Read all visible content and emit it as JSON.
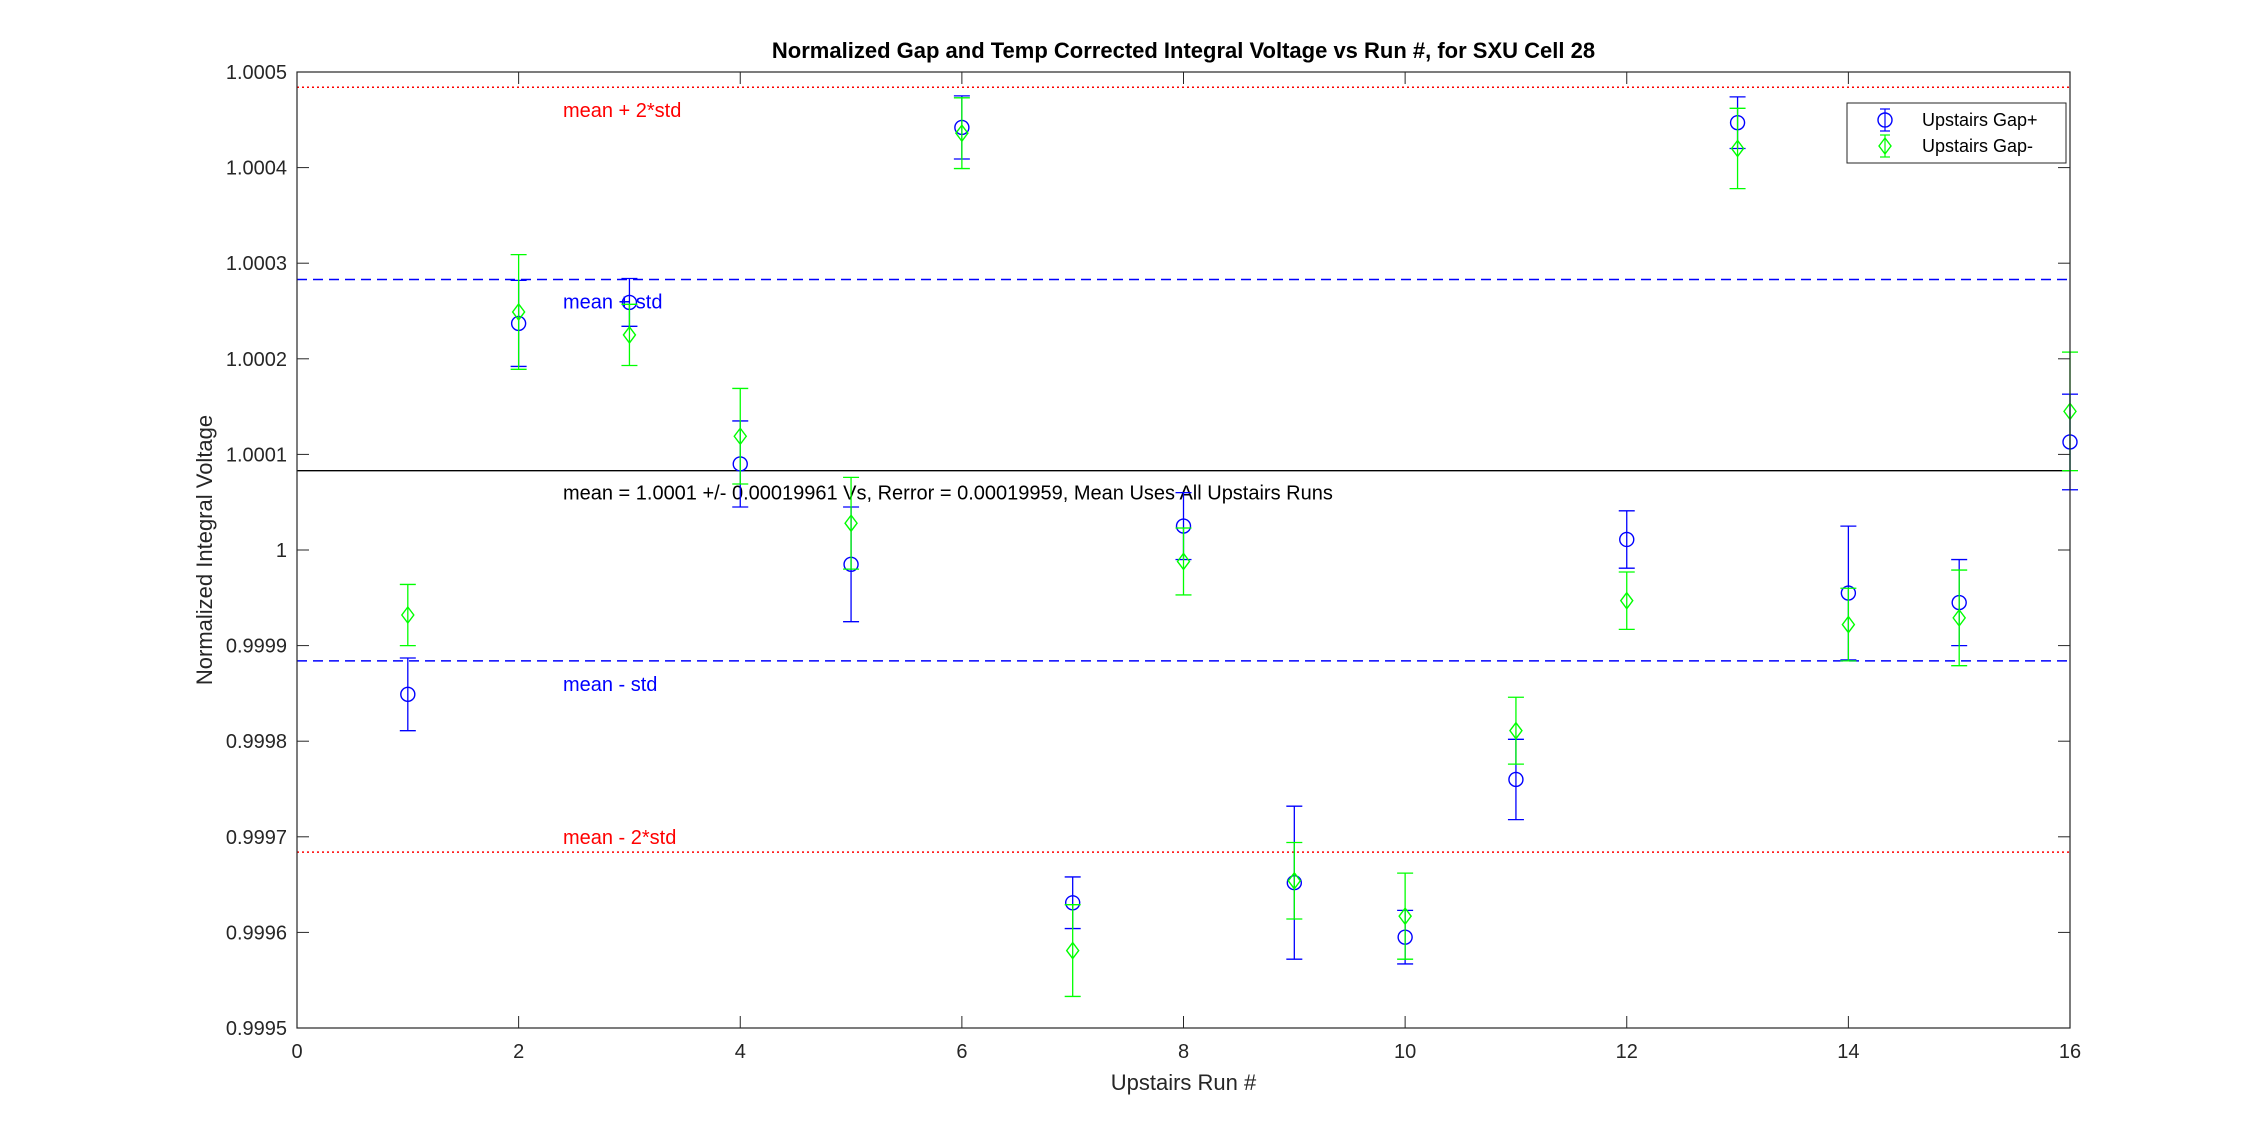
{
  "chart_data": {
    "type": "scatter",
    "title": "Normalized Gap and Temp Corrected Integral Voltage vs Run #, for SXU Cell 28",
    "xlabel": "Upstairs Run #",
    "ylabel": "Normalized Integral Voltage",
    "xlim": [
      0,
      16
    ],
    "ylim": [
      0.9995,
      1.0005
    ],
    "x_ticks": [
      0,
      2,
      4,
      6,
      8,
      10,
      12,
      14,
      16
    ],
    "x_tick_labels": [
      "0",
      "2",
      "4",
      "6",
      "8",
      "10",
      "12",
      "14",
      "16"
    ],
    "y_ticks": [
      0.9995,
      0.9996,
      0.9997,
      0.9998,
      0.9999,
      1.0,
      1.0001,
      1.0002,
      1.0003,
      1.0004,
      1.0005
    ],
    "y_tick_labels": [
      "0.9995",
      "0.9996",
      "0.9997",
      "0.9998",
      "0.9999",
      "1",
      "1.0001",
      "1.0002",
      "1.0003",
      "1.0004",
      "1.0005"
    ],
    "grid": false,
    "legend_position": "top-right",
    "series": [
      {
        "name": "Upstairs Gap+",
        "color": "#0000ff",
        "marker": "circle",
        "x": [
          1,
          2,
          3,
          4,
          5,
          6,
          7,
          8,
          9,
          10,
          11,
          12,
          13,
          14,
          15,
          16
        ],
        "y": [
          0.999849,
          1.000237,
          1.000259,
          1.00009,
          0.999985,
          1.000442,
          0.999631,
          1.000025,
          0.999652,
          0.999595,
          0.99976,
          1.000011,
          1.000447,
          0.999955,
          0.999945,
          1.000113
        ],
        "err": [
          3.8e-05,
          4.5e-05,
          2.5e-05,
          4.5e-05,
          6e-05,
          3.3e-05,
          2.7e-05,
          3.5e-05,
          8e-05,
          2.8e-05,
          4.2e-05,
          3e-05,
          2.7e-05,
          7e-05,
          4.5e-05,
          5e-05
        ]
      },
      {
        "name": "Upstairs Gap-",
        "color": "#00ff00",
        "marker": "diamond",
        "x": [
          1,
          2,
          3,
          4,
          5,
          6,
          7,
          8,
          9,
          10,
          11,
          12,
          13,
          14,
          15,
          16
        ],
        "y": [
          0.999932,
          1.000249,
          1.000225,
          1.000119,
          1.000028,
          1.000436,
          0.999581,
          0.999988,
          0.999654,
          0.999617,
          0.999811,
          0.999947,
          1.00042,
          0.999922,
          0.999929,
          1.000145
        ],
        "err": [
          3.2e-05,
          6e-05,
          3.2e-05,
          5e-05,
          4.8e-05,
          3.7e-05,
          4.8e-05,
          3.5e-05,
          4e-05,
          4.5e-05,
          3.5e-05,
          3e-05,
          4.2e-05,
          3.8e-05,
          5e-05,
          6.2e-05
        ]
      }
    ],
    "reference_lines": [
      {
        "y": 1.000484,
        "style": "dotted",
        "color": "#ff0000",
        "label": "mean + 2*std",
        "label_x": 2.4,
        "label_y": 1.00046,
        "label_color": "#ff0000"
      },
      {
        "y": 1.000283,
        "style": "dashed",
        "color": "#0000ff",
        "label": "mean + std",
        "label_x": 2.4,
        "label_y": 1.00026,
        "label_color": "#0000ff"
      },
      {
        "y": 1.000083,
        "style": "solid",
        "color": "#000000",
        "label": "mean = 1.0001 +/- 0.00019961 Vs, Rerror = 0.00019959, Mean Uses All Upstairs Runs",
        "label_x": 2.4,
        "label_y": 1.00006,
        "label_color": "#000000"
      },
      {
        "y": 0.999884,
        "style": "dashed",
        "color": "#0000ff",
        "label": "mean - std",
        "label_x": 2.4,
        "label_y": 0.99986,
        "label_color": "#0000ff"
      },
      {
        "y": 0.999684,
        "style": "dotted",
        "color": "#ff0000",
        "label": "mean - 2*std",
        "label_x": 2.4,
        "label_y": 0.9997,
        "label_color": "#ff0000"
      }
    ]
  }
}
